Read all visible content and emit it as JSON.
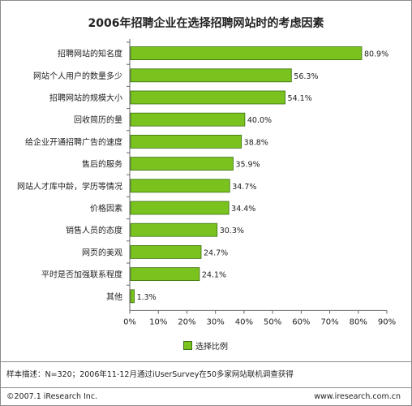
{
  "chart_data": {
    "type": "bar",
    "orientation": "horizontal",
    "title": "2006年招聘企业在选择招聘网站时的考虑因素",
    "categories": [
      "招聘网站的知名度",
      "网站个人用户的数量多少",
      "招聘网站的规模大小",
      "回收简历的量",
      "给企业开通招聘广告的速度",
      "售后的服务",
      "网站人才库中龄，学历等情况",
      "价格因素",
      "销售人员的态度",
      "网页的美观",
      "平时是否加强联系程度",
      "其他"
    ],
    "series": [
      {
        "name": "选择比例",
        "values": [
          80.9,
          56.3,
          54.1,
          40.0,
          38.8,
          35.9,
          34.7,
          34.4,
          30.3,
          24.7,
          24.1,
          1.3
        ],
        "labels": [
          "80.9%",
          "56.3%",
          "54.1%",
          "40.0%",
          "38.8%",
          "35.9%",
          "34.7%",
          "34.4%",
          "30.3%",
          "24.7%",
          "24.1%",
          "1.3%"
        ]
      }
    ],
    "xlim": [
      0,
      90
    ],
    "x_ticks": [
      "0%",
      "10%",
      "20%",
      "30%",
      "40%",
      "50%",
      "60%",
      "70%",
      "80%",
      "90%"
    ],
    "bar_color": "#7ac31e",
    "grid": false,
    "legend_position": "bottom"
  },
  "footer": {
    "note": "样本描述：N=320；2006年11-12月通过iUserSurvey在50多家网站联机调查获得",
    "copyright": "©2007.1 iResearch Inc.",
    "site": "www.iresearch.com.cn"
  }
}
